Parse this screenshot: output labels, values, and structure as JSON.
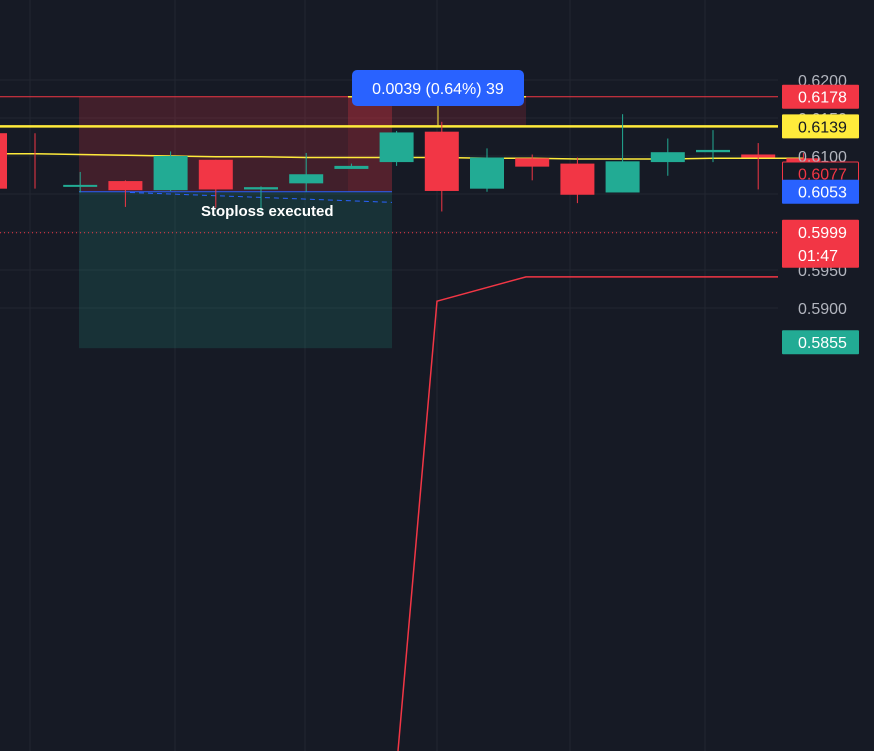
{
  "chart_data": {
    "type": "candlestick",
    "ylim": [
      0.585,
      0.6225
    ],
    "y_ticks": [
      "0.6200",
      "0.6150",
      "0.6100",
      "0.5950",
      "0.5900"
    ],
    "candles": [
      {
        "open": 0.613,
        "high": 0.613,
        "low": 0.6057,
        "close": 0.6057
      },
      {
        "open": 0.6062,
        "high": 0.6079,
        "low": 0.6052,
        "close": 0.6062
      },
      {
        "open": 0.6067,
        "high": 0.6068,
        "low": 0.6033,
        "close": 0.6055
      },
      {
        "open": 0.6055,
        "high": 0.6106,
        "low": 0.6054,
        "close": 0.61
      },
      {
        "open": 0.6095,
        "high": 0.6095,
        "low": 0.6032,
        "close": 0.6056
      },
      {
        "open": 0.6056,
        "high": 0.606,
        "low": 0.6025,
        "close": 0.6059
      },
      {
        "open": 0.6064,
        "high": 0.6104,
        "low": 0.6053,
        "close": 0.6076
      },
      {
        "open": 0.6083,
        "high": 0.609,
        "low": 0.6083,
        "close": 0.6087
      },
      {
        "open": 0.6092,
        "high": 0.6133,
        "low": 0.6087,
        "close": 0.6131
      },
      {
        "open": 0.6132,
        "high": 0.6145,
        "low": 0.6027,
        "close": 0.6054
      },
      {
        "open": 0.6057,
        "high": 0.611,
        "low": 0.6053,
        "close": 0.6098
      },
      {
        "open": 0.6097,
        "high": 0.6102,
        "low": 0.6068,
        "close": 0.6086
      },
      {
        "open": 0.609,
        "high": 0.6098,
        "low": 0.6038,
        "close": 0.6049
      },
      {
        "open": 0.6052,
        "high": 0.6155,
        "low": 0.6052,
        "close": 0.6093
      },
      {
        "open": 0.6092,
        "high": 0.6123,
        "low": 0.6074,
        "close": 0.6105
      },
      {
        "open": 0.6105,
        "high": 0.6134,
        "low": 0.6092,
        "close": 0.6108
      },
      {
        "open": 0.6102,
        "high": 0.6117,
        "low": 0.6056,
        "close": 0.6098
      },
      {
        "open": 0.6097,
        "high": 0.6104,
        "low": 0.6041,
        "close": 0.608
      }
    ],
    "moving_average": [
      0.6103,
      0.6102,
      0.6101,
      0.61,
      0.6099,
      0.6099,
      0.6098,
      0.6098,
      0.6098,
      0.6098,
      0.6097,
      0.6097,
      0.6096,
      0.6096,
      0.6096,
      0.6097,
      0.6097,
      0.6097
    ],
    "price_tags": [
      {
        "value": 0.6178,
        "label": "0.6178",
        "style": "filled",
        "color": "#f23645"
      },
      {
        "value": 0.6139,
        "label": "0.6139",
        "style": "filled",
        "color": "#ffeb3b"
      },
      {
        "value": 0.6077,
        "label": "0.6077",
        "style": "outline",
        "color": "#f23645"
      },
      {
        "value": 0.6053,
        "label": "0.6053",
        "style": "filled",
        "color": "#2962ff"
      },
      {
        "value": 0.5999,
        "label": "0.5999",
        "sub": "01:47",
        "style": "filled",
        "color": "#f23645"
      },
      {
        "value": 0.5855,
        "label": "0.5855",
        "style": "filled",
        "color": "#22ab94"
      }
    ],
    "measure_label": "0.0039 (0.64%) 39",
    "annotation": "Stoploss executed",
    "colors": {
      "background": "#161a25",
      "up": "#22ab94",
      "down": "#f23645",
      "moving_average": "#ffeb3b",
      "measure": "#2962ff"
    }
  }
}
